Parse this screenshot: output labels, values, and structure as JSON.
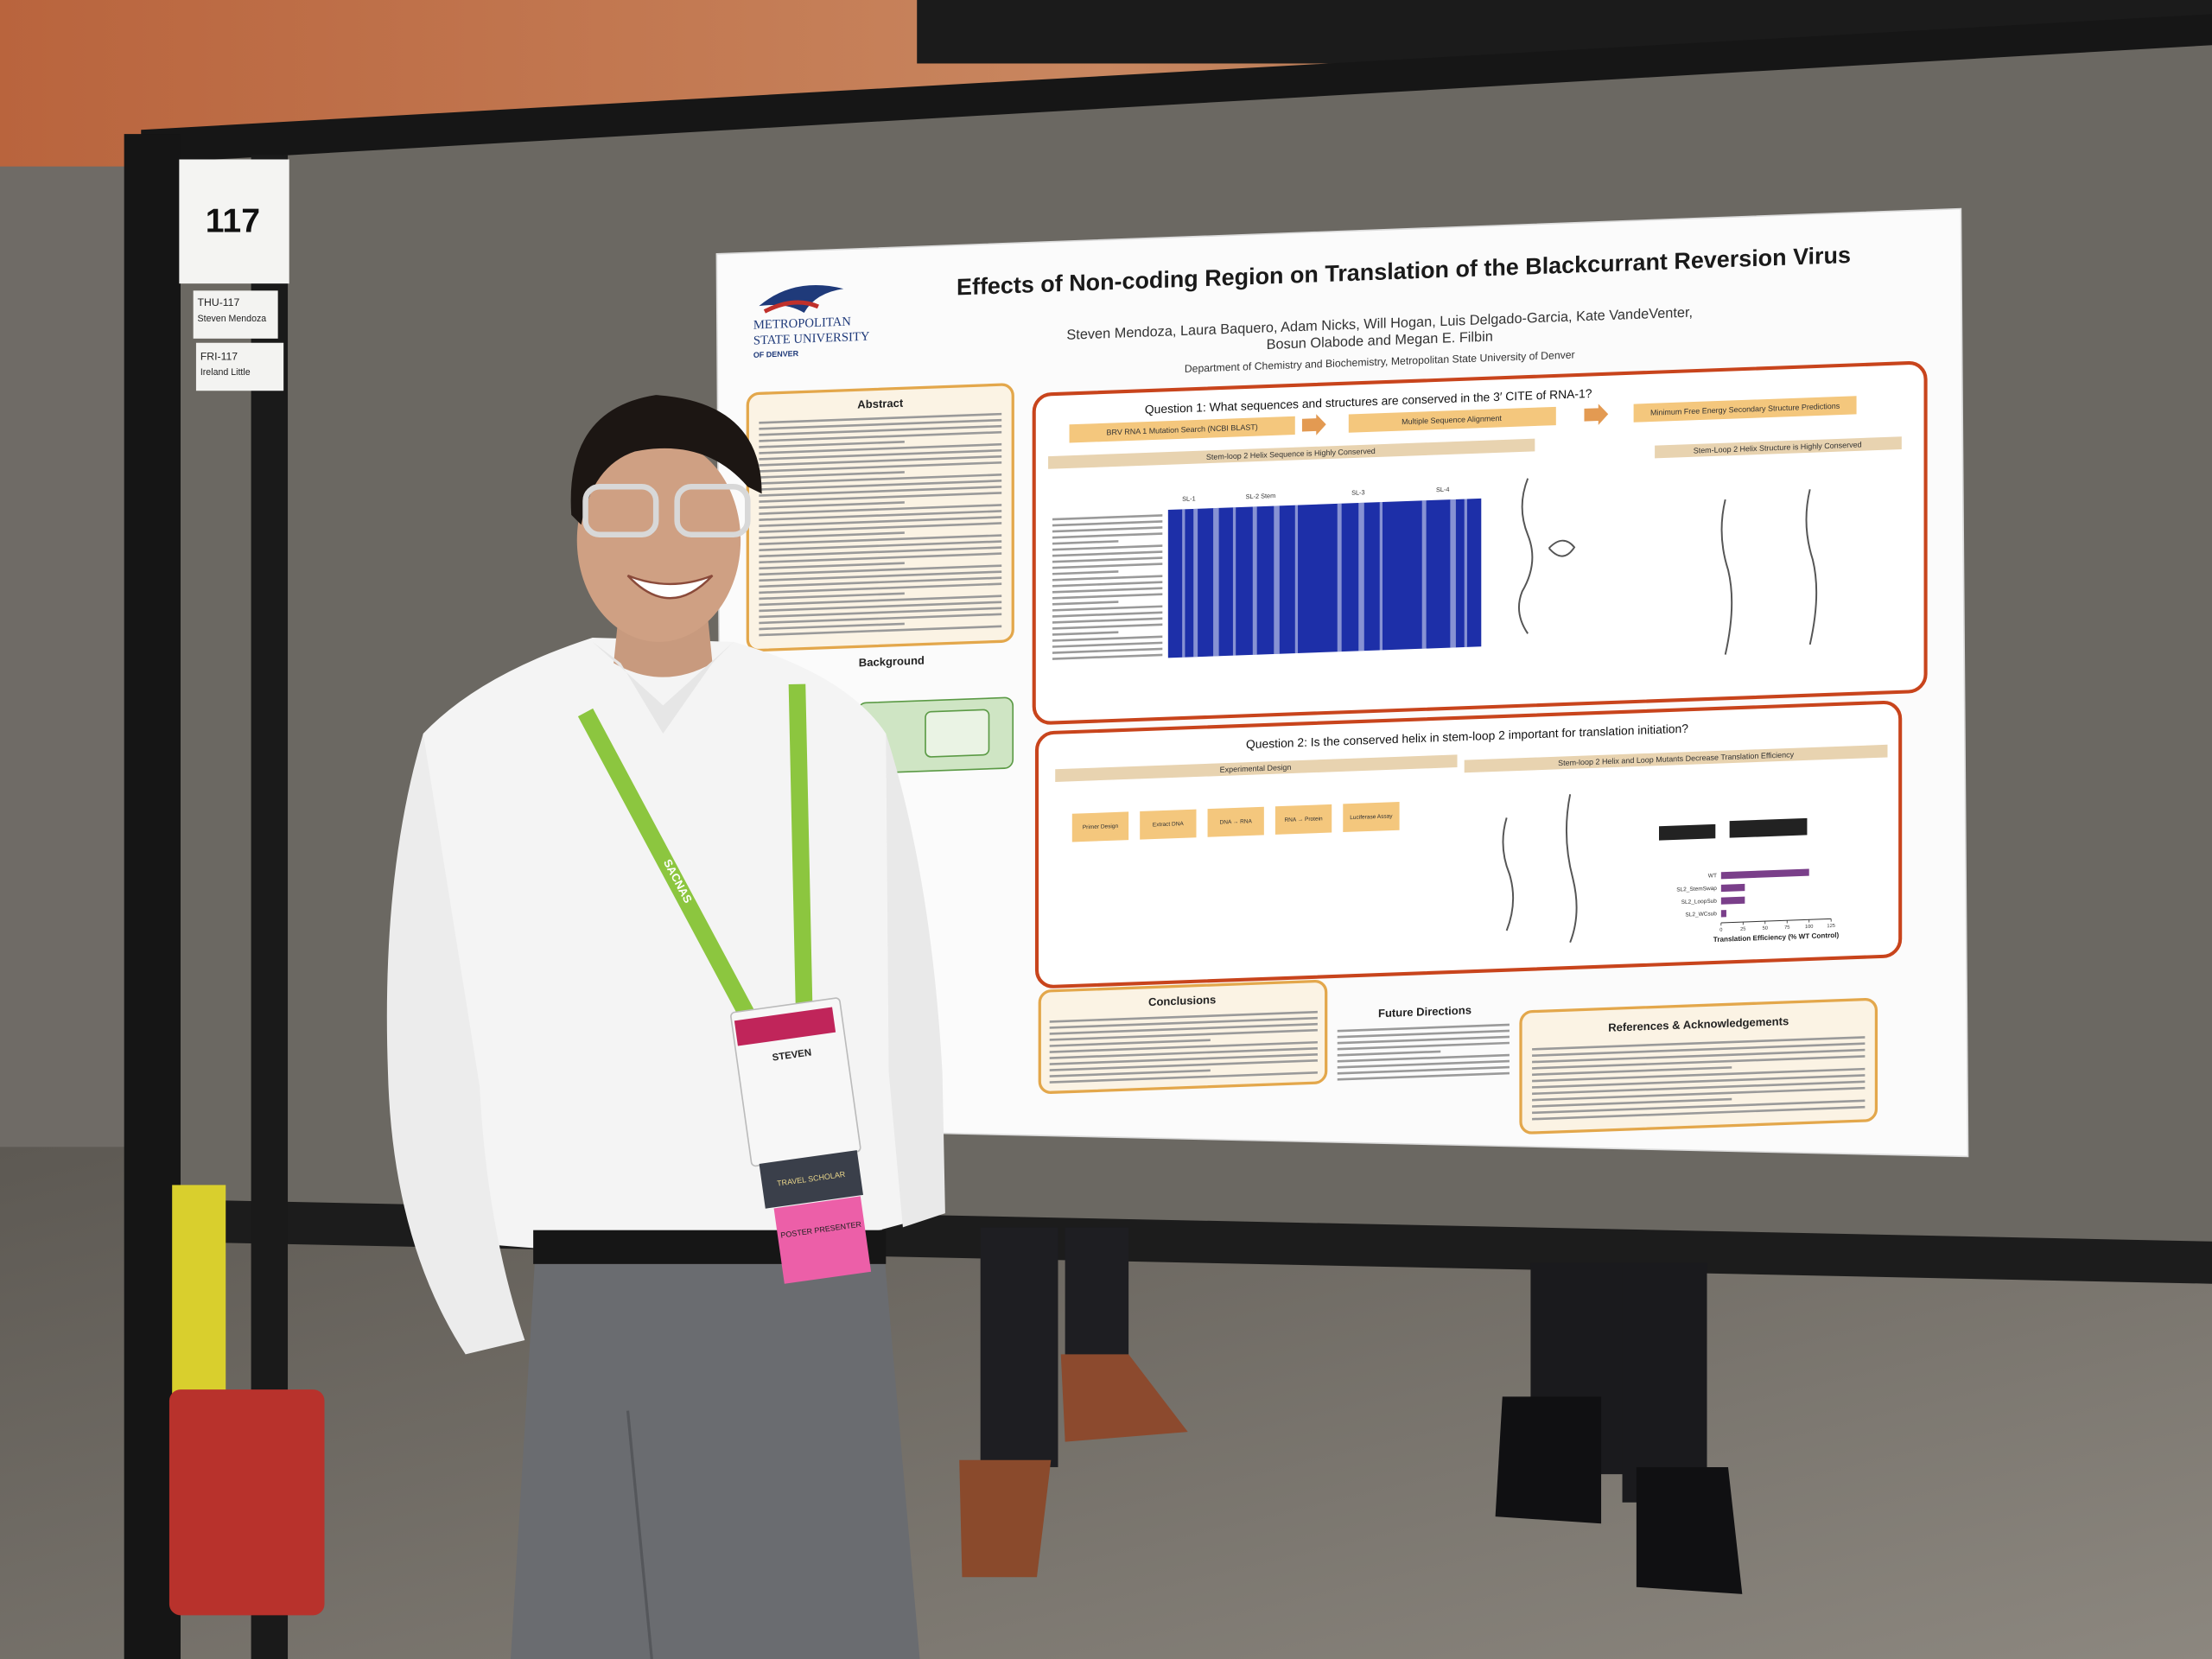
{
  "booth": {
    "number": "117",
    "presenters": [
      {
        "session": "THU-117",
        "name": "Steven Mendoza"
      },
      {
        "session": "FRI-117",
        "name": "Ireland Little"
      }
    ]
  },
  "poster": {
    "logo": {
      "line1": "METROPOLITAN",
      "line2": "STATE UNIVERSITY",
      "line3": "OF DENVER"
    },
    "title": "Effects of Non-coding Region on Translation of the Blackcurrant Reversion Virus",
    "authors": [
      "Steven Mendoza, Laura Baquero, Adam Nicks, Will Hogan, Luis Delgado-Garcia, Kate VandeVenter,",
      "Bosun Olabode and Megan E. Filbin"
    ],
    "affiliation": "Department of Chemistry and Biochemistry, Metropolitan State University of Denver",
    "abstract": {
      "heading": "Abstract"
    },
    "background": {
      "heading": "Background"
    },
    "question1": {
      "heading": "Question 1: What sequences and structures are conserved in the 3′ CITE of RNA-1?",
      "steps": [
        "BRV RNA 1 Mutation Search (NCBI BLAST)",
        "Multiple Sequence Alignment",
        "Minimum Free Energy Secondary Structure Predictions"
      ],
      "panels": [
        "Stem-loop 2 Helix Sequence is Highly Conserved",
        "Stem-Loop 2 Helix Structure is Highly Conserved"
      ],
      "labels": [
        "SL-1",
        "SL-2 Stem",
        "SL-3",
        "SL-4"
      ]
    },
    "question2": {
      "heading": "Question 2: Is the conserved helix in stem-loop 2 important for translation initiation?",
      "panels": [
        "Experimental Design",
        "Stem-loop 2 Helix and Loop Mutants Decrease Translation Efficiency"
      ],
      "steps": [
        "Primer Design",
        "Extract DNA",
        "DNA → RNA",
        "RNA → Protein",
        "Luciferase Assay"
      ],
      "chart_data": {
        "type": "bar",
        "categories": [
          "WT",
          "SL2_StemSwap",
          "SL2_LoopSub",
          "SL2_WCsub"
        ],
        "values": [
          100,
          27,
          27,
          6
        ],
        "color": "#7a3f8a",
        "xlim": [
          0,
          125
        ],
        "xticks": [
          0,
          25,
          50,
          75,
          100,
          125
        ],
        "xlabel": "Translation Efficiency (% WT Control)"
      }
    },
    "conclusions": {
      "heading": "Conclusions"
    },
    "future": {
      "heading": "Future Directions"
    },
    "references": {
      "heading": "References & Acknowledgements"
    }
  },
  "badge": {
    "name": "STEVEN",
    "ribbons": [
      "TRAVEL SCHOLAR",
      "POSTER PRESENTER"
    ]
  },
  "lanyard": "SACNAS"
}
